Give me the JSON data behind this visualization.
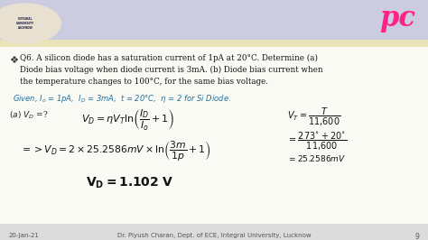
{
  "bg_main": "#f5f5f0",
  "header_lavender": "#cccce0",
  "header_yellow": "#e8e4b8",
  "footer_bg": "#e0e0e0",
  "content_bg": "#fafaf5",
  "question_line1": "Q6. A silicon diode has a saturation current of 1pA at 20°C. Determine (a)",
  "question_line2": "Diode bias voltage when diode current is 3mA. (b) Diode bias current when",
  "question_line3": "the temperature changes to 100°C, for the same bias voltage.",
  "footer_date": "20-Jan-21",
  "footer_center": "Dr. Piyush Charan, Dept. of ECE, Integral University, Lucknow",
  "footer_page": "9",
  "bullet": "❖"
}
